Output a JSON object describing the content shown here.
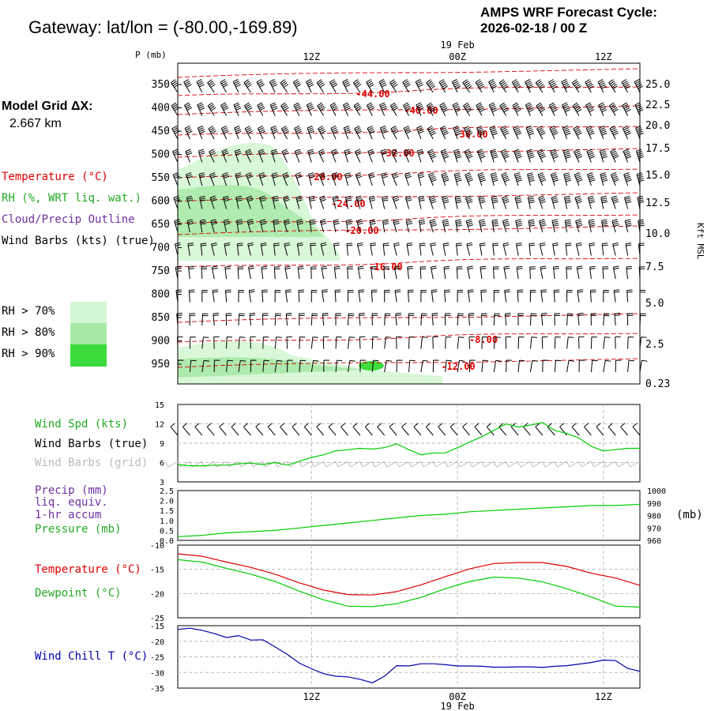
{
  "header": {
    "title": "Gateway:  lat/lon = (-80.00,-169.89)",
    "cycle_line1": "AMPS WRF Forecast Cycle:",
    "cycle_line2": "2026-02-18 / 00  Z",
    "grid_label": "Model Grid ΔX:",
    "grid_value": "2.667 km"
  },
  "legend": {
    "temperature": "Temperature (°C)",
    "rh": "RH (%, WRT liq. wat.)",
    "cloud": "Cloud/Precip Outline",
    "wind_barbs": "Wind Barbs (kts) (true)",
    "rh70": "RH > 70%",
    "rh80": "RH > 80%",
    "rh90": "RH > 90%",
    "rh_colors": [
      "#d4f7d4",
      "#a6e8a6",
      "#3ddc3d"
    ]
  },
  "panel_labels": {
    "wind_spd": "Wind Spd (kts)",
    "wind_barbs_true": "Wind Barbs (true)",
    "wind_barbs_grid": "Wind Barbs (grid)",
    "precip1": "Precip (mm)",
    "precip2": "liq. equiv.",
    "precip3": "1-hr accum",
    "pressure": "Pressure (mb)",
    "pressure_unit": "(mb)",
    "temperature": "Temperature (°C)",
    "dewpoint": "Dewpoint (°C)",
    "wind_chill": "Wind Chill T (°C)"
  },
  "colors": {
    "temperature": "#dd0000",
    "dewpoint": "#00cc00",
    "wind_chill": "#0000aa",
    "precip": "#7030a0",
    "grey": "#bbbbbb"
  },
  "chart_data": [
    {
      "type": "heatmap",
      "name": "cross-section",
      "ylabel": "P (mb)",
      "right_label": "Kft MSL",
      "date_label": "19 Feb",
      "time_ticks": [
        "12Z",
        "00Z",
        "12Z"
      ],
      "pressure_levels": [
        350,
        400,
        450,
        500,
        550,
        600,
        650,
        700,
        750,
        800,
        850,
        900,
        950
      ],
      "height_ticks_kft": [
        "25.0",
        "22.5",
        "20.0",
        "17.5",
        "15.0",
        "12.5",
        "10.0",
        "7.5",
        "5.0",
        "2.5",
        "0.23"
      ],
      "temperature_contour_labels": [
        "-44.00",
        "-40.00",
        "-36.00",
        "-32.00",
        "-28.00",
        "-24.00",
        "-20.00",
        "-16.00",
        "-8.00",
        "-12.00"
      ]
    },
    {
      "type": "line",
      "name": "wind speed",
      "ylim": [
        3,
        15
      ],
      "yticks": [
        3,
        6,
        9,
        12,
        15
      ],
      "x": [
        0,
        1,
        2,
        3,
        4,
        5,
        6,
        7,
        8,
        9,
        10,
        11,
        12,
        13,
        14,
        15,
        16,
        17,
        18,
        19,
        20,
        21,
        22,
        23,
        24,
        25,
        26,
        27,
        28,
        29,
        30,
        31,
        32,
        33,
        34,
        35,
        36,
        37,
        38
      ],
      "values": [
        5.7,
        5.5,
        5.5,
        5.6,
        5.6,
        5.8,
        5.9,
        5.7,
        6.0,
        5.6,
        6.2,
        6.8,
        7.2,
        7.8,
        8.0,
        8.2,
        8.1,
        8.3,
        8.9,
        8.0,
        7.2,
        7.5,
        7.5,
        8.3,
        9.2,
        10.0,
        11.0,
        12.0,
        11.5,
        11.8,
        12.2,
        11.0,
        10.5,
        9.8,
        8.5,
        7.8,
        8.0,
        8.2,
        8.2
      ]
    },
    {
      "type": "line",
      "name": "pressure",
      "ylim": [
        960,
        1000
      ],
      "yticks_left": [
        0,
        0.5,
        1.0,
        1.5,
        2.0,
        2.5
      ],
      "yticks_right": [
        960,
        970,
        980,
        990,
        1000
      ],
      "x": [
        0,
        2,
        4,
        6,
        8,
        10,
        12,
        14,
        16,
        18,
        20,
        22,
        24,
        26,
        28,
        30,
        32,
        34,
        36,
        38
      ],
      "values": [
        963,
        964,
        966,
        967,
        968,
        970,
        972,
        974,
        976,
        978,
        980,
        981,
        983,
        984,
        985,
        986,
        987,
        988,
        988,
        989
      ]
    },
    {
      "type": "line",
      "name": "temperature and dewpoint",
      "ylim": [
        -25,
        -10
      ],
      "yticks": [
        -25,
        -20,
        -15,
        -10
      ],
      "x": [
        0,
        2,
        4,
        6,
        8,
        10,
        12,
        14,
        16,
        18,
        20,
        22,
        24,
        26,
        28,
        30,
        32,
        34,
        36,
        38
      ],
      "series": [
        {
          "name": "Temperature",
          "values": [
            -11.8,
            -12.3,
            -13.5,
            -14.6,
            -16.0,
            -17.8,
            -19.3,
            -20.2,
            -20.3,
            -19.6,
            -18.2,
            -16.5,
            -14.9,
            -13.8,
            -13.6,
            -13.6,
            -14.4,
            -15.8,
            -16.8,
            -18.3
          ]
        },
        {
          "name": "Dewpoint",
          "values": [
            -13.0,
            -13.5,
            -14.8,
            -16.0,
            -17.5,
            -19.5,
            -21.3,
            -22.6,
            -22.7,
            -22.1,
            -20.8,
            -19.0,
            -17.5,
            -16.6,
            -16.8,
            -17.6,
            -19.0,
            -20.7,
            -22.6,
            -22.8
          ]
        }
      ]
    },
    {
      "type": "line",
      "name": "wind chill",
      "ylim": [
        -35,
        -15
      ],
      "yticks": [
        -35,
        -30,
        -25,
        -20,
        -15
      ],
      "x": [
        0,
        1,
        2,
        3,
        4,
        5,
        6,
        7,
        8,
        9,
        10,
        11,
        12,
        13,
        14,
        15,
        16,
        17,
        18,
        19,
        20,
        21,
        22,
        23,
        24,
        25,
        26,
        27,
        28,
        29,
        30,
        31,
        32,
        33,
        34,
        35,
        36,
        37,
        38
      ],
      "values": [
        -16.2,
        -15.8,
        -16.5,
        -17.5,
        -18.8,
        -18.2,
        -19.6,
        -19.5,
        -21.8,
        -24.2,
        -27.0,
        -28.8,
        -30.4,
        -31.2,
        -31.4,
        -32.2,
        -33.3,
        -31.2,
        -27.8,
        -27.9,
        -27.2,
        -27.2,
        -27.5,
        -27.9,
        -27.9,
        -28.0,
        -28.3,
        -28.3,
        -28.2,
        -28.2,
        -28.4,
        -28.0,
        -27.8,
        -27.3,
        -26.8,
        -26.0,
        -26.2,
        -28.7,
        -29.6
      ]
    }
  ]
}
